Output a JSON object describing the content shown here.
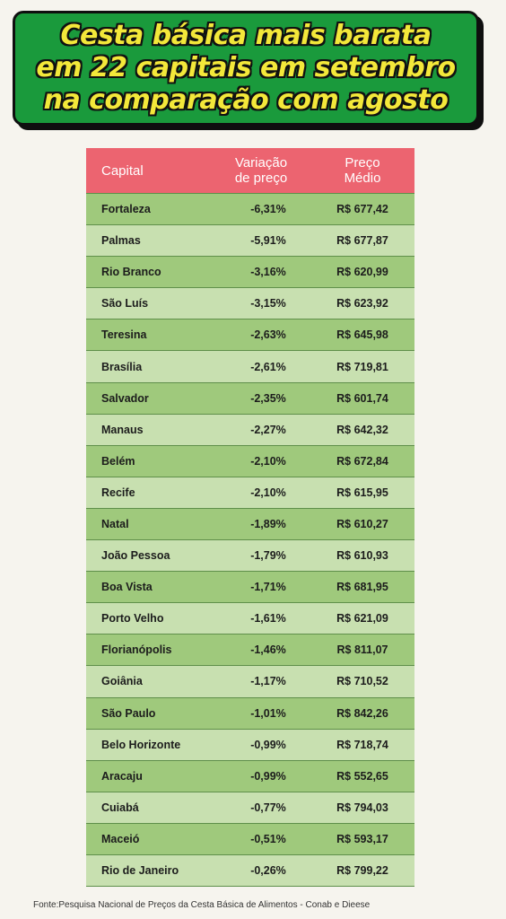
{
  "title": {
    "line1": "Cesta básica mais barata",
    "line2": "em 22 capitais em setembro",
    "line3": "na comparação com agosto"
  },
  "table": {
    "headers": {
      "capital": "Capital",
      "variacao_l1": "Variação",
      "variacao_l2": "de preço",
      "preco_l1": "Preço",
      "preco_l2": "Médio"
    },
    "rows": [
      {
        "capital": "Fortaleza",
        "variacao": "-6,31%",
        "preco": "R$ 677,42"
      },
      {
        "capital": "Palmas",
        "variacao": "-5,91%",
        "preco": "R$ 677,87"
      },
      {
        "capital": "Rio Branco",
        "variacao": "-3,16%",
        "preco": "R$ 620,99"
      },
      {
        "capital": "São Luís",
        "variacao": "-3,15%",
        "preco": "R$ 623,92"
      },
      {
        "capital": "Teresina",
        "variacao": "-2,63%",
        "preco": "R$ 645,98"
      },
      {
        "capital": "Brasília",
        "variacao": "-2,61%",
        "preco": "R$ 719,81"
      },
      {
        "capital": "Salvador",
        "variacao": "-2,35%",
        "preco": "R$ 601,74"
      },
      {
        "capital": "Manaus",
        "variacao": "-2,27%",
        "preco": "R$ 642,32"
      },
      {
        "capital": "Belém",
        "variacao": "-2,10%",
        "preco": "R$ 672,84"
      },
      {
        "capital": "Recife",
        "variacao": "-2,10%",
        "preco": "R$ 615,95"
      },
      {
        "capital": "Natal",
        "variacao": "-1,89%",
        "preco": "R$ 610,27"
      },
      {
        "capital": "João Pessoa",
        "variacao": "-1,79%",
        "preco": "R$ 610,93"
      },
      {
        "capital": "Boa Vista",
        "variacao": "-1,71%",
        "preco": "R$ 681,95"
      },
      {
        "capital": "Porto Velho",
        "variacao": "-1,61%",
        "preco": "R$ 621,09"
      },
      {
        "capital": "Florianópolis",
        "variacao": "-1,46%",
        "preco": "R$ 811,07"
      },
      {
        "capital": "Goiânia",
        "variacao": "-1,17%",
        "preco": "R$ 710,52"
      },
      {
        "capital": "São Paulo",
        "variacao": "-1,01%",
        "preco": "R$ 842,26"
      },
      {
        "capital": "Belo Horizonte",
        "variacao": "-0,99%",
        "preco": "R$ 718,74"
      },
      {
        "capital": "Aracaju",
        "variacao": "-0,99%",
        "preco": "R$ 552,65"
      },
      {
        "capital": "Cuiabá",
        "variacao": "-0,77%",
        "preco": "R$ 794,03"
      },
      {
        "capital": "Maceió",
        "variacao": "-0,51%",
        "preco": "R$ 593,17"
      },
      {
        "capital": "Rio de Janeiro",
        "variacao": "-0,26%",
        "preco": "R$ 799,22"
      }
    ]
  },
  "footer": "Fonte:Pesquisa Nacional de Preços da Cesta Básica de Alimentos - Conab e Dieese",
  "colors": {
    "title_bg": "#1a9a3c",
    "title_text": "#f3e83a",
    "header_bg": "#ec6470",
    "row_dark": "#9fc97c",
    "row_light": "#c8e0b0"
  }
}
